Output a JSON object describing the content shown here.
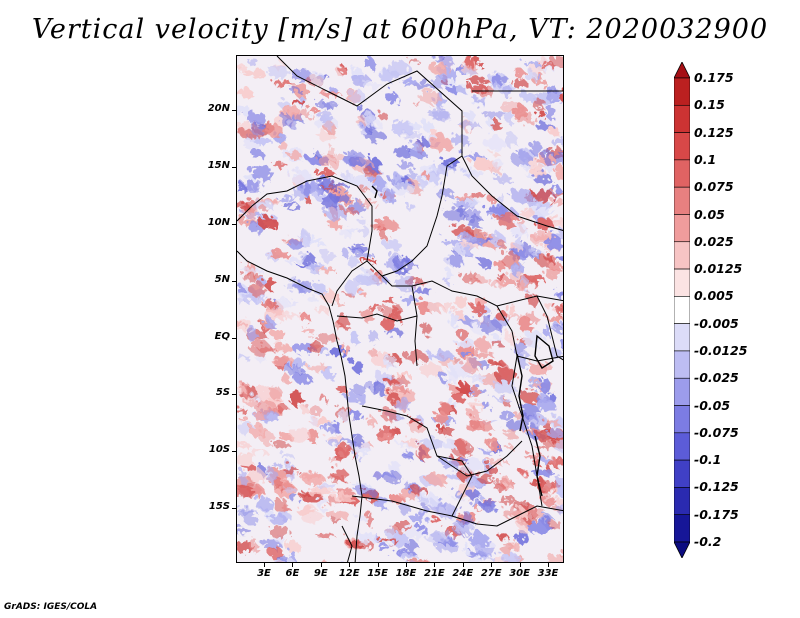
{
  "title": "Vertical velocity [m/s] at 600hPa, VT: 2020032900",
  "credit": "GrADS: IGES/COLA",
  "lat_axis": [
    "20N",
    "15N",
    "10N",
    "5N",
    "EQ",
    "5S",
    "10S",
    "15S"
  ],
  "lon_axis": [
    "3E",
    "6E",
    "9E",
    "12E",
    "15E",
    "18E",
    "21E",
    "24E",
    "27E",
    "30E",
    "33E"
  ],
  "colorbar": {
    "labels": [
      "0.175",
      "0.15",
      "0.125",
      "0.1",
      "0.075",
      "0.05",
      "0.025",
      "0.0125",
      "0.005",
      "-0.005",
      "-0.0125",
      "-0.025",
      "-0.05",
      "-0.075",
      "-0.1",
      "-0.125",
      "-0.175",
      "-0.2"
    ],
    "colors": [
      "#a50f15",
      "#bb2020",
      "#cc3333",
      "#d84848",
      "#e06363",
      "#e88080",
      "#f09c9c",
      "#f7c4c4",
      "#fbe3e3",
      "#ffffff",
      "#dcdcf8",
      "#bdbdf3",
      "#9c9cec",
      "#7c7ce3",
      "#5c5cd8",
      "#4040c6",
      "#2a2ab0",
      "#161698",
      "#0c0c80"
    ]
  },
  "palette": {
    "positive": "#d85050",
    "negative": "#5555d5",
    "neutral": "#f7eff5",
    "borders": "#000000"
  }
}
